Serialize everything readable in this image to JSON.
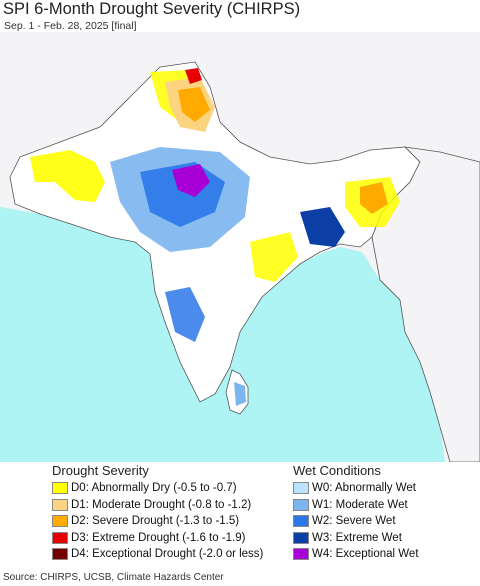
{
  "header": {
    "title": "SPI 6-Month Drought Severity (CHIRPS)",
    "subtitle": "Sep. 1 - Feb. 28, 2025 [final]"
  },
  "legend": {
    "drought": {
      "heading": "Drought Severity",
      "items": [
        {
          "label": "D0: Abnormally Dry (-0.5 to -0.7)",
          "color": "#ffff00"
        },
        {
          "label": "D1: Moderate Drought (-0.8 to -1.2)",
          "color": "#fcd37f"
        },
        {
          "label": "D2: Severe Drought (-1.3 to -1.5)",
          "color": "#ffaa00"
        },
        {
          "label": "D3: Extreme Drought (-1.6 to -1.9)",
          "color": "#e60000"
        },
        {
          "label": "D4: Exceptional Drought (-2.0 or less)",
          "color": "#730000"
        }
      ]
    },
    "wet": {
      "heading": "Wet Conditions",
      "items": [
        {
          "label": "W0: Abnormally Wet",
          "color": "#bde2fc"
        },
        {
          "label": "W1: Moderate Wet",
          "color": "#7bb5f0"
        },
        {
          "label": "W2: Severe Wet",
          "color": "#2a77e8"
        },
        {
          "label": "W3: Extreme Wet",
          "color": "#0b3fa6"
        },
        {
          "label": "W4: Exceptional Wet",
          "color": "#a700d6"
        }
      ]
    }
  },
  "footer": {
    "source": "Source: CHIRPS, UCSB, Climate Hazards Center"
  },
  "map": {
    "colors": {
      "ocean": "#aef4f4",
      "land": "#ffffff",
      "outside_land": "#f4f4f6",
      "border": "#555555"
    }
  }
}
